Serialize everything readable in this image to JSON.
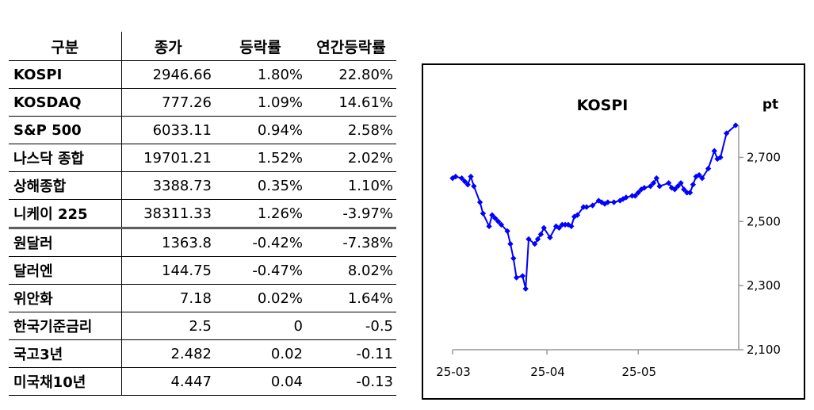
{
  "table": {
    "headers": [
      "구분",
      "종가",
      "등락률",
      "연간등락률"
    ],
    "rows": [
      [
        "KOSPI",
        "2946.66",
        "1.80%",
        "22.80%"
      ],
      [
        "KOSDAQ",
        "777.26",
        "1.09%",
        "14.61%"
      ],
      [
        "S&P 500",
        "6033.11",
        "0.94%",
        "2.58%"
      ],
      [
        "나스닥 종합",
        "19701.21",
        "1.52%",
        "2.02%"
      ],
      [
        "상해종합",
        "3388.73",
        "0.35%",
        "1.10%"
      ],
      [
        "니케이 225",
        "38311.33",
        "1.26%",
        "-3.97%"
      ],
      [
        "원달러",
        "1363.8",
        "-0.42%",
        "-7.38%"
      ],
      [
        "달러엔",
        "144.75",
        "-0.47%",
        "8.02%"
      ],
      [
        "위안화",
        "7.18",
        "0.02%",
        "1.64%"
      ],
      [
        "한국기준금리",
        "2.5",
        "0",
        "-0.5"
      ],
      [
        "국고3년",
        "2.482",
        "0.02",
        "-0.11"
      ],
      [
        "미국채10년",
        "4.447",
        "0.04",
        "-0.13"
      ]
    ]
  },
  "chart_data": {
    "type": "line",
    "title": "KOSPI",
    "ylabel": "pt",
    "ylim": [
      2100,
      2800
    ],
    "yticks": [
      2100,
      2300,
      2500,
      2700
    ],
    "ytick_labels": [
      "2,100",
      "2,300",
      "2,500",
      "2,700"
    ],
    "xlim": [
      "2025-03-01",
      "2025-06-03"
    ],
    "xticks": [
      "2025-03-01",
      "2025-04-01",
      "2025-05-01"
    ],
    "xtick_labels": [
      "25-03",
      "25-04",
      "25-05"
    ],
    "grid": false,
    "color": "#0000ff",
    "series": [
      {
        "x": [
          "2025-03-01",
          "2025-03-02",
          "2025-03-04",
          "2025-03-05",
          "2025-03-06",
          "2025-03-07",
          "2025-03-08",
          "2025-03-10",
          "2025-03-11",
          "2025-03-13",
          "2025-03-14",
          "2025-03-15",
          "2025-03-16",
          "2025-03-17",
          "2025-03-19",
          "2025-03-20",
          "2025-03-21",
          "2025-03-22",
          "2025-03-24",
          "2025-03-25",
          "2025-03-26",
          "2025-03-28",
          "2025-03-29",
          "2025-03-30",
          "2025-03-31",
          "2025-04-02",
          "2025-04-04",
          "2025-04-05",
          "2025-04-06",
          "2025-04-07",
          "2025-04-08",
          "2025-04-09",
          "2025-04-10",
          "2025-04-11",
          "2025-04-13",
          "2025-04-14",
          "2025-04-16",
          "2025-04-18",
          "2025-04-19",
          "2025-04-20",
          "2025-04-21",
          "2025-04-23",
          "2025-04-25",
          "2025-04-26",
          "2025-04-27",
          "2025-04-29",
          "2025-04-30",
          "2025-05-01",
          "2025-05-02",
          "2025-05-03",
          "2025-05-05",
          "2025-05-06",
          "2025-05-07",
          "2025-05-08",
          "2025-05-11",
          "2025-05-12",
          "2025-05-13",
          "2025-05-14",
          "2025-05-15",
          "2025-05-16",
          "2025-05-17",
          "2025-05-18",
          "2025-05-19",
          "2025-05-20",
          "2025-05-21",
          "2025-05-22",
          "2025-05-24",
          "2025-05-26",
          "2025-05-27",
          "2025-05-28",
          "2025-05-30",
          "2025-06-02"
        ],
        "values": [
          2635,
          2640,
          2635,
          2625,
          2615,
          2640,
          2610,
          2560,
          2525,
          2485,
          2520,
          2510,
          2500,
          2490,
          2470,
          2430,
          2385,
          2325,
          2330,
          2290,
          2445,
          2430,
          2445,
          2460,
          2480,
          2450,
          2485,
          2480,
          2490,
          2490,
          2490,
          2485,
          2515,
          2520,
          2545,
          2545,
          2550,
          2565,
          2560,
          2555,
          2560,
          2560,
          2565,
          2570,
          2575,
          2580,
          2580,
          2590,
          2600,
          2605,
          2610,
          2620,
          2635,
          2610,
          2620,
          2605,
          2600,
          2610,
          2620,
          2600,
          2590,
          2590,
          2615,
          2640,
          2645,
          2635,
          2665,
          2720,
          2695,
          2700,
          2775,
          2800
        ]
      }
    ]
  }
}
